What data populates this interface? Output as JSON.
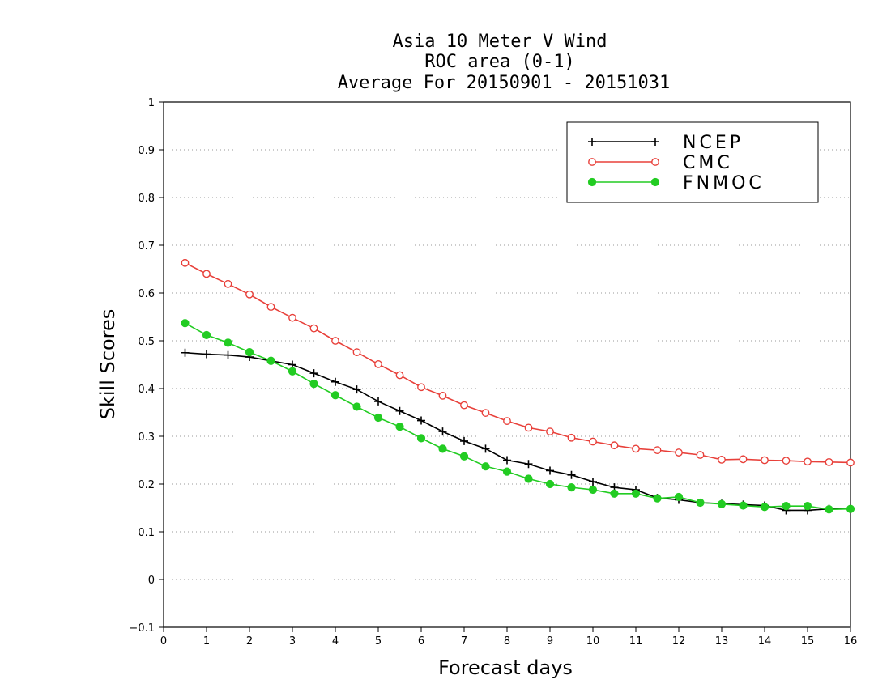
{
  "chart_data": {
    "type": "line",
    "title_lines": [
      "Asia 10 Meter V Wind",
      "ROC area (0-1)",
      "Average For 20150901 - 20151031"
    ],
    "xlabel": "Forecast days",
    "ylabel": "Skill Scores",
    "xlim": [
      0,
      16
    ],
    "ylim": [
      -0.1,
      1
    ],
    "x_ticks": [
      "0",
      "1",
      "2",
      "3",
      "4",
      "5",
      "6",
      "7",
      "8",
      "9",
      "10",
      "11",
      "12",
      "13",
      "14",
      "15",
      "16"
    ],
    "y_ticks": [
      "−0.1",
      "0",
      "0.1",
      "0.2",
      "0.3",
      "0.4",
      "0.5",
      "0.6",
      "0.7",
      "0.8",
      "0.9",
      "1"
    ],
    "grid": "horizontal dotted",
    "legend_position": "top-right",
    "x": [
      0.5,
      1,
      1.5,
      2,
      2.5,
      3,
      3.5,
      4,
      4.5,
      5,
      5.5,
      6,
      6.5,
      7,
      7.5,
      8,
      8.5,
      9,
      9.5,
      10,
      10.5,
      11,
      11.5,
      12,
      12.5,
      13,
      13.5,
      14,
      14.5,
      15,
      15.5,
      16
    ],
    "series": [
      {
        "name": "NCEP",
        "color": "#000000",
        "marker": "plus",
        "values": [
          0.475,
          0.472,
          0.47,
          0.466,
          0.458,
          0.45,
          0.432,
          0.414,
          0.398,
          0.373,
          0.353,
          0.333,
          0.31,
          0.29,
          0.274,
          0.25,
          0.242,
          0.228,
          0.219,
          0.205,
          0.193,
          0.188,
          0.171,
          0.167,
          0.161,
          0.159,
          0.157,
          0.155,
          0.145,
          0.145,
          0.148,
          0.148
        ]
      },
      {
        "name": "CMC",
        "color": "#e8403a",
        "marker": "open-circle",
        "values": [
          0.663,
          0.64,
          0.619,
          0.597,
          0.571,
          0.548,
          0.526,
          0.5,
          0.476,
          0.451,
          0.428,
          0.403,
          0.385,
          0.365,
          0.349,
          0.332,
          0.318,
          0.31,
          0.297,
          0.289,
          0.281,
          0.274,
          0.271,
          0.266,
          0.261,
          0.251,
          0.252,
          0.25,
          0.249,
          0.247,
          0.246,
          0.245
        ]
      },
      {
        "name": "FNMOC",
        "color": "#22cc22",
        "marker": "filled-circle",
        "values": [
          0.537,
          0.512,
          0.496,
          0.476,
          0.458,
          0.436,
          0.41,
          0.386,
          0.362,
          0.339,
          0.32,
          0.296,
          0.274,
          0.258,
          0.237,
          0.226,
          0.211,
          0.2,
          0.193,
          0.188,
          0.18,
          0.18,
          0.17,
          0.173,
          0.161,
          0.158,
          0.155,
          0.152,
          0.154,
          0.154,
          0.147,
          0.148
        ]
      }
    ]
  }
}
